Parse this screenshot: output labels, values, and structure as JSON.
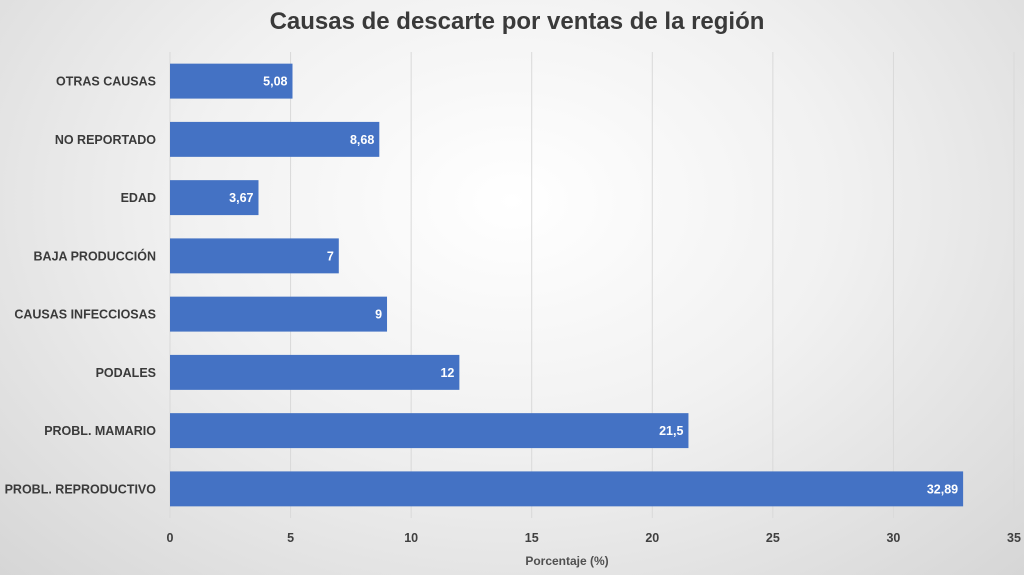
{
  "chart_data": {
    "type": "bar",
    "orientation": "horizontal",
    "title": "Causas de descarte por ventas de la región",
    "xlabel": "Porcentaje (%)",
    "ylabel": "",
    "categories": [
      "PROBL. REPRODUCTIVO",
      "PROBL. MAMARIO",
      "PODALES",
      "CAUSAS INFECCIOSAS",
      "BAJA PRODUCCIÓN",
      "EDAD",
      "NO REPORTADO",
      "OTRAS CAUSAS"
    ],
    "values": [
      32.89,
      21.5,
      12,
      9,
      7,
      3.67,
      8.68,
      5.08
    ],
    "value_labels": [
      "32,89",
      "21,5",
      "12",
      "9",
      "7",
      "3,67",
      "8,68",
      "5,08"
    ],
    "xlim": [
      0,
      35
    ],
    "xticks": [
      0,
      5,
      10,
      15,
      20,
      25,
      30,
      35
    ],
    "grid": "vertical",
    "legend": "none",
    "bar_color": "#4472c4",
    "grid_color": "#d9d9d9"
  }
}
